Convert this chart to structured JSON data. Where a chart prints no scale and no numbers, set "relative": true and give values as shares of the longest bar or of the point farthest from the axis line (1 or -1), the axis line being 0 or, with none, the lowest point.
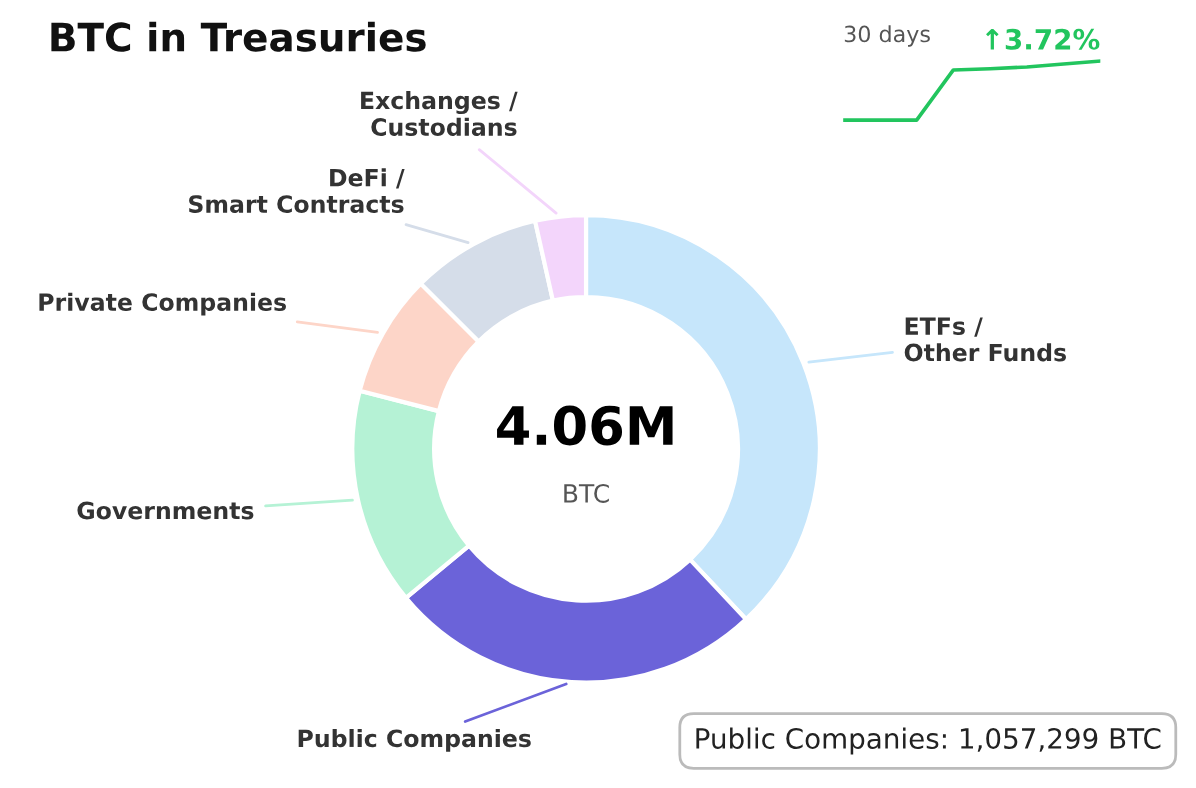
{
  "chart_data": [
    {
      "type": "donut",
      "title": "BTC in Treasuries",
      "categories": [
        "ETFs / Other Funds",
        "Public Companies",
        "Governments",
        "Private Companies",
        "DeFi / Smart Contracts",
        "Exchanges / Custodians"
      ],
      "values": [
        38,
        26,
        15,
        8.5,
        9,
        3.5
      ],
      "colors": [
        "#c6e6fb",
        "#6b63d9",
        "#b5f2d5",
        "#fdd5c8",
        "#d5dde9",
        "#f3d5fb"
      ],
      "annotations": [
        "4.06M",
        "BTC",
        "Public Companies: 1,057,299 BTC"
      ],
      "legend": false
    },
    {
      "type": "line",
      "relative": true,
      "title": "↑3.72%",
      "annotations": [
        "30 days"
      ],
      "categories": [
        null,
        null,
        null,
        null,
        null,
        null,
        null,
        null
      ],
      "series": [
        {
          "color": "#22c55e",
          "values": [
            0,
            0,
            0,
            0.85,
            0.87,
            0.9,
            0.95,
            1.0
          ]
        }
      ],
      "legend": false
    }
  ]
}
